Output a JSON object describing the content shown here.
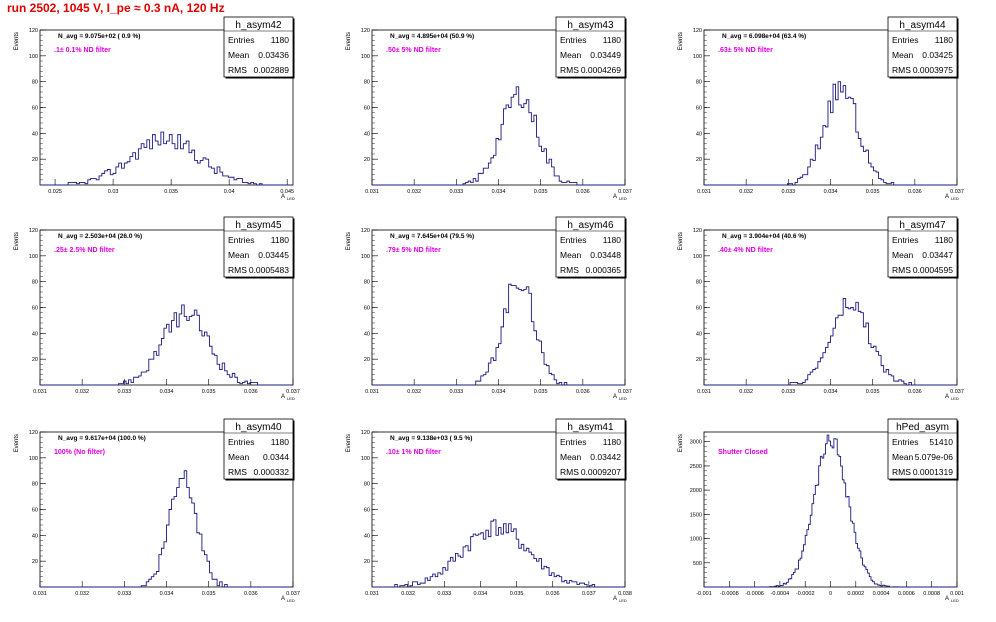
{
  "title": "run 2502,  1045 V, I_pe ≈ 0.3 nA, 120 Hz",
  "y_axis_label": "Events",
  "x_axis_label": "A",
  "x_axis_subscript": "LED",
  "stat_labels": {
    "entries": "Entries",
    "mean": "Mean",
    "rms": "RMS"
  },
  "colors": {
    "hist": "#1a1a80",
    "note": "#e000e0",
    "title": "#e00000",
    "frame": "#000000"
  },
  "chart_data": [
    {
      "type": "histogram",
      "name": "h_asym42",
      "navg": "N_avg = 9.075e+02 ( 0.9 %)",
      "note": ".1± 0.1% ND filter",
      "entries": "1180",
      "mean": "0.03436",
      "rms": "0.002889",
      "xlim": [
        0.0237,
        0.0455
      ],
      "ylim": [
        0,
        120
      ],
      "xticks": [
        "0.025",
        "0.03",
        "0.035",
        "0.04",
        "0.045"
      ],
      "yticks": [
        "20",
        "40",
        "60",
        "80",
        "100",
        "120"
      ],
      "mu": 0.0345,
      "sigma": 0.0029,
      "peak": 36,
      "bins": 90,
      "seed": 42
    },
    {
      "type": "histogram",
      "name": "h_asym43",
      "navg": "N_avg = 4.895e+04 (50.9 %)",
      "note": ".50± 5% ND filter",
      "entries": "1180",
      "mean": "0.03449",
      "rms": "0.0004269",
      "xlim": [
        0.031,
        0.037
      ],
      "ylim": [
        0,
        120
      ],
      "xticks": [
        "0.031",
        "0.032",
        "0.033",
        "0.034",
        "0.035",
        "0.036",
        "0.037"
      ],
      "yticks": [
        "20",
        "40",
        "60",
        "80",
        "100",
        "120"
      ],
      "mu": 0.03449,
      "sigma": 0.00043,
      "peak": 70,
      "bins": 100,
      "seed": 43
    },
    {
      "type": "histogram",
      "name": "h_asym44",
      "navg": "N_avg = 6.098e+04 (63.4 %)",
      "note": ".63± 5% ND filter",
      "entries": "1180",
      "mean": "0.03425",
      "rms": "0.0003975",
      "xlim": [
        0.031,
        0.037
      ],
      "ylim": [
        0,
        120
      ],
      "xticks": [
        "0.031",
        "0.032",
        "0.033",
        "0.034",
        "0.035",
        "0.036",
        "0.037"
      ],
      "yticks": [
        "20",
        "40",
        "60",
        "80",
        "100",
        "120"
      ],
      "mu": 0.03425,
      "sigma": 0.0004,
      "peak": 75,
      "bins": 100,
      "seed": 44
    },
    {
      "type": "histogram",
      "name": "h_asym45",
      "navg": "N_avg = 2.503e+04 (26.0 %)",
      "note": ".25± 2.5% ND filter",
      "entries": "1180",
      "mean": "0.03445",
      "rms": "0.0005483",
      "xlim": [
        0.031,
        0.037
      ],
      "ylim": [
        0,
        120
      ],
      "xticks": [
        "0.031",
        "0.032",
        "0.033",
        "0.034",
        "0.035",
        "0.036",
        "0.037"
      ],
      "yticks": [
        "20",
        "40",
        "60",
        "80",
        "100",
        "120"
      ],
      "mu": 0.03445,
      "sigma": 0.00055,
      "peak": 55,
      "bins": 100,
      "seed": 45
    },
    {
      "type": "histogram",
      "name": "h_asym46",
      "navg": "N_avg = 7.645e+04 (79.5 %)",
      "note": ".79± 5% ND filter",
      "entries": "1180",
      "mean": "0.03448",
      "rms": "0.000365",
      "xlim": [
        0.031,
        0.037
      ],
      "ylim": [
        0,
        120
      ],
      "xticks": [
        "0.031",
        "0.032",
        "0.033",
        "0.034",
        "0.035",
        "0.036",
        "0.037"
      ],
      "yticks": [
        "20",
        "40",
        "60",
        "80",
        "100",
        "120"
      ],
      "mu": 0.03448,
      "sigma": 0.000365,
      "peak": 82,
      "bins": 100,
      "seed": 46
    },
    {
      "type": "histogram",
      "name": "h_asym47",
      "navg": "N_avg = 3.904e+04 (40.6 %)",
      "note": ".40± 4% ND filter",
      "entries": "1180",
      "mean": "0.03447",
      "rms": "0.0004595",
      "xlim": [
        0.031,
        0.037
      ],
      "ylim": [
        0,
        120
      ],
      "xticks": [
        "0.031",
        "0.032",
        "0.033",
        "0.034",
        "0.035",
        "0.036",
        "0.037"
      ],
      "yticks": [
        "20",
        "40",
        "60",
        "80",
        "100",
        "120"
      ],
      "mu": 0.03447,
      "sigma": 0.00046,
      "peak": 62,
      "bins": 100,
      "seed": 47
    },
    {
      "type": "histogram",
      "name": "h_asym40",
      "navg": "N_avg = 9.617e+04 (100.0 %)",
      "note": "100% (No filter)",
      "entries": "1180",
      "mean": "0.0344",
      "rms": "0.000332",
      "xlim": [
        0.031,
        0.037
      ],
      "ylim": [
        0,
        120
      ],
      "xticks": [
        "0.031",
        "0.032",
        "0.033",
        "0.034",
        "0.035",
        "0.036",
        "0.037"
      ],
      "yticks": [
        "20",
        "40",
        "60",
        "80",
        "100",
        "120"
      ],
      "mu": 0.0344,
      "sigma": 0.00033,
      "peak": 88,
      "bins": 100,
      "seed": 40
    },
    {
      "type": "histogram",
      "name": "h_asym41",
      "navg": "N_avg = 9.138e+03 ( 9.5 %)",
      "note": ".10± 1% ND filter",
      "entries": "1180",
      "mean": "0.03442",
      "rms": "0.0009207",
      "xlim": [
        0.031,
        0.038
      ],
      "ylim": [
        0,
        120
      ],
      "xticks": [
        "0.031",
        "0.032",
        "0.033",
        "0.034",
        "0.035",
        "0.036",
        "0.037",
        "0.038"
      ],
      "yticks": [
        "20",
        "40",
        "60",
        "80",
        "100",
        "120"
      ],
      "mu": 0.03442,
      "sigma": 0.00092,
      "peak": 46,
      "bins": 100,
      "seed": 41
    },
    {
      "type": "histogram",
      "name": "hPed_asym",
      "navg": "",
      "note": "Shutter Closed",
      "entries": "51410",
      "mean": "5.079e-06",
      "rms": "0.0001319",
      "xlim": [
        -0.001,
        0.001
      ],
      "ylim": [
        0,
        3200
      ],
      "xticks": [
        "-0.001",
        "-0.0008",
        "-0.0006",
        "-0.0004",
        "-0.0002",
        "0",
        "0.0002",
        "0.0004",
        "0.0006",
        "0.0008",
        "0.001"
      ],
      "yticks": [
        "500",
        "1000",
        "1500",
        "2000",
        "2500",
        "3000"
      ],
      "mu": 5e-06,
      "sigma": 0.000132,
      "peak": 3050,
      "bins": 150,
      "seed": 99
    }
  ]
}
